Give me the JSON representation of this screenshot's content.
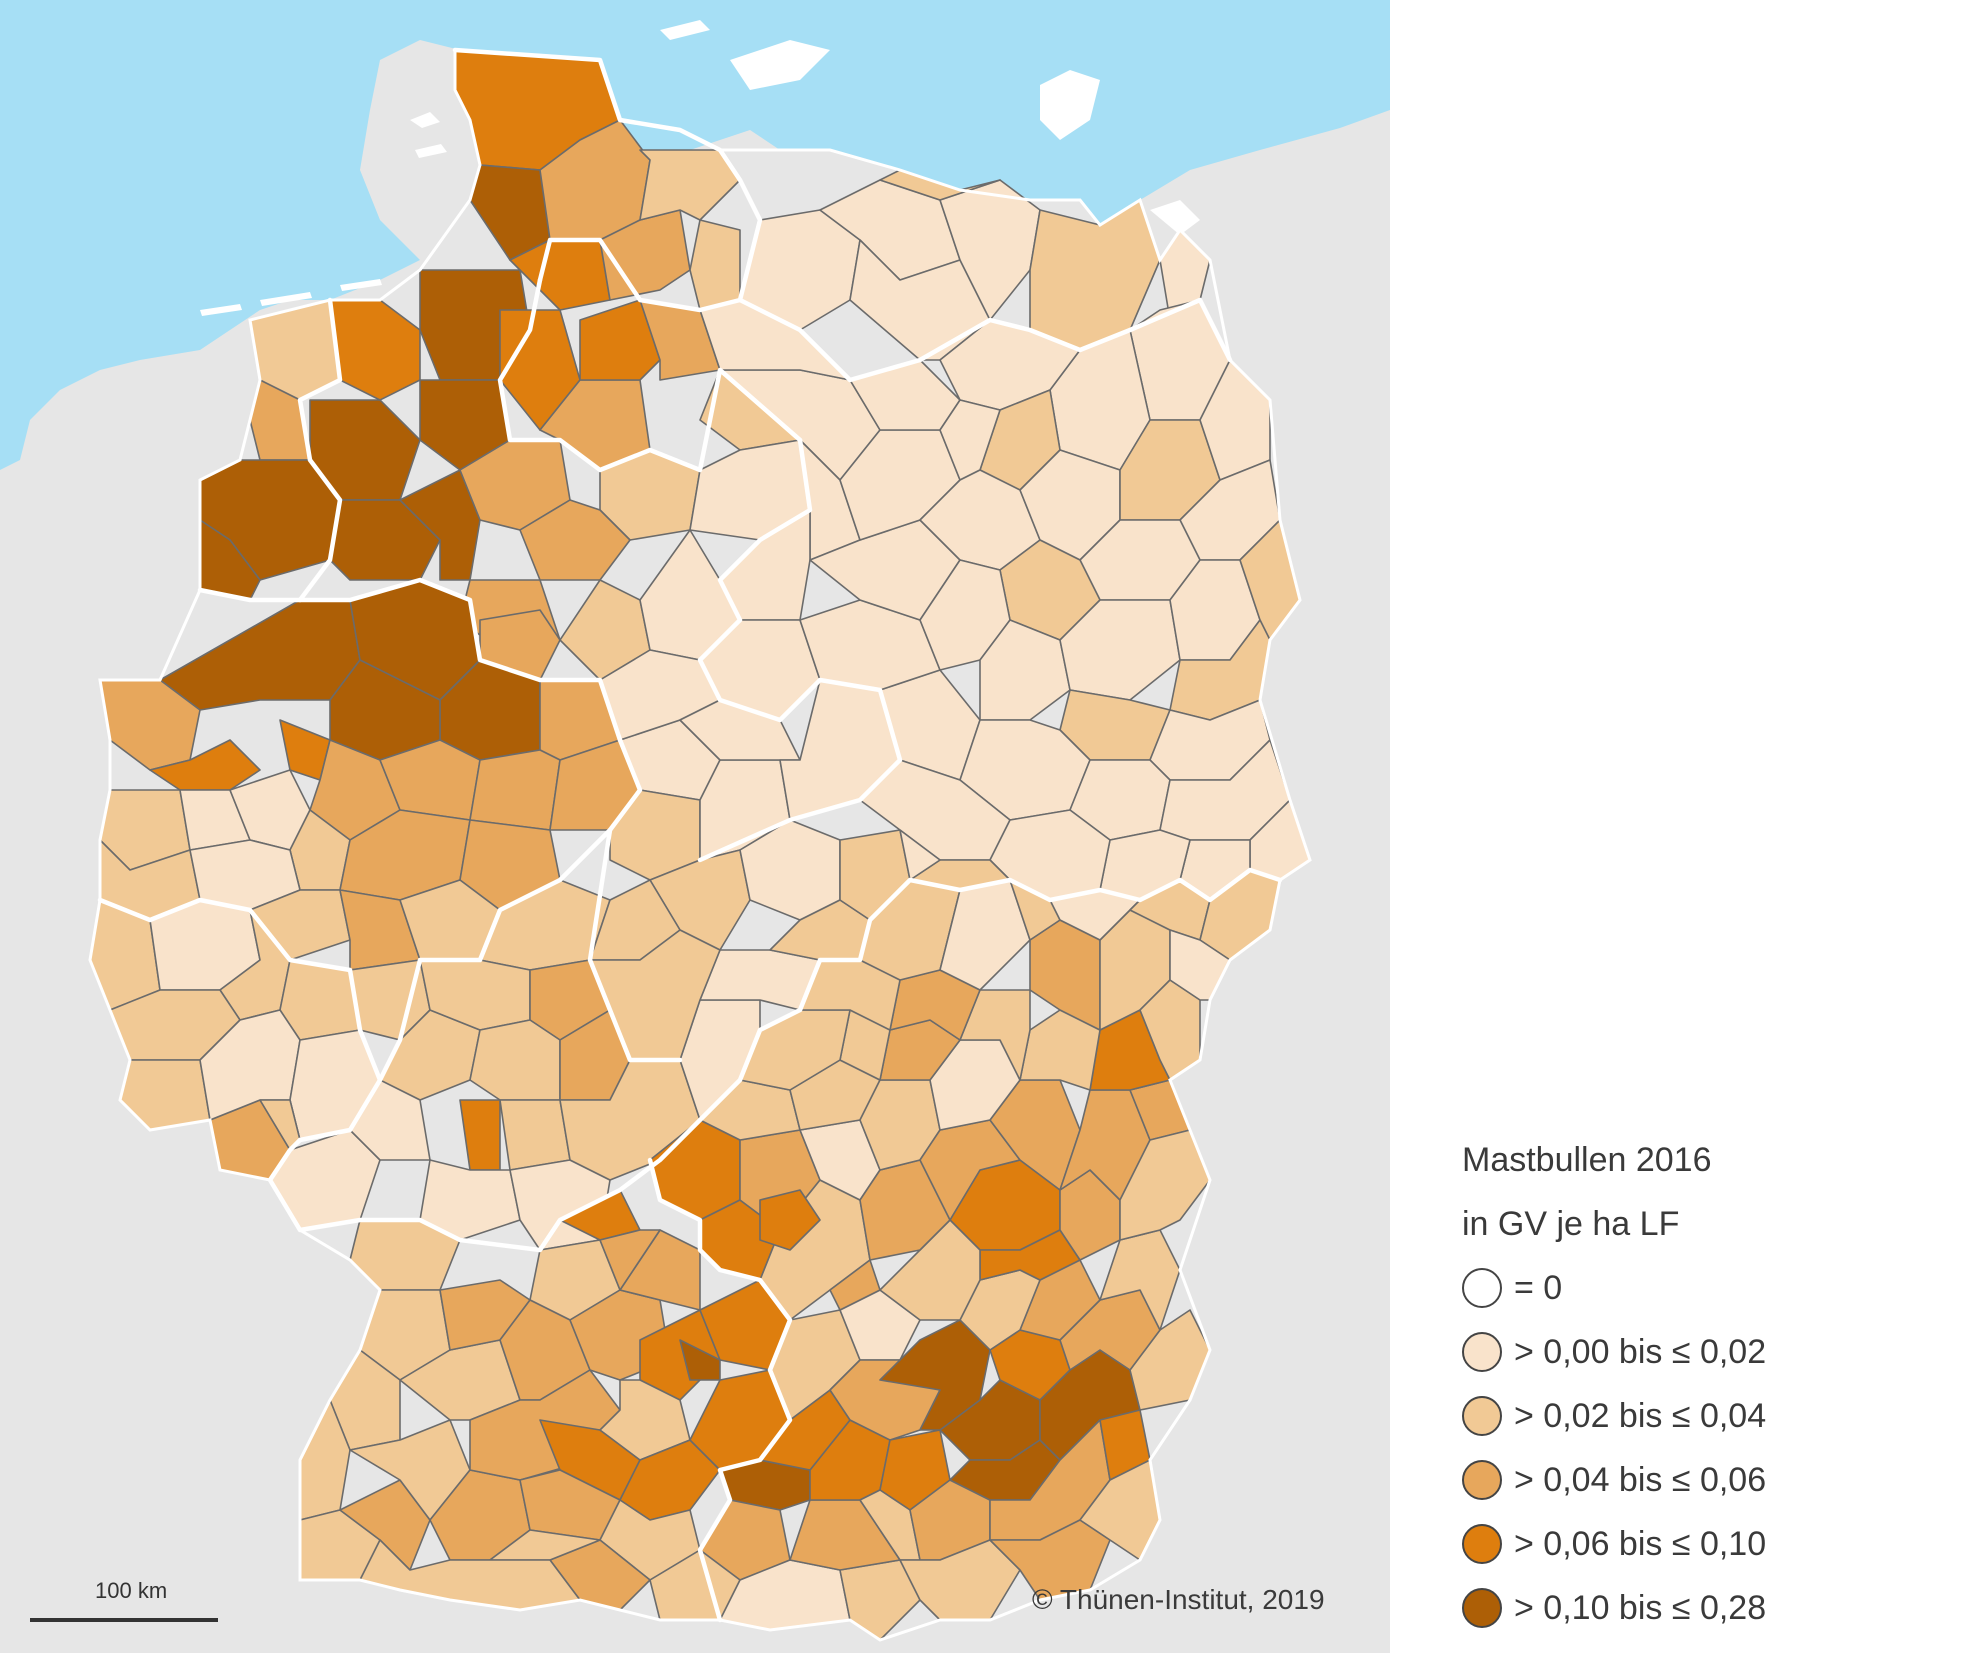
{
  "legend": {
    "title_line1": "Mastbullen 2016",
    "title_line2": "in GV je ha LF",
    "classes": [
      {
        "label": "= 0",
        "color": "#ffffff"
      },
      {
        "label": "> 0,00 bis ≤ 0,02",
        "color": "#f9e3cb"
      },
      {
        "label": "> 0,02 bis ≤ 0,04",
        "color": "#f1c995"
      },
      {
        "label": "> 0,04 bis ≤ 0,06",
        "color": "#e7a75c"
      },
      {
        "label": "> 0,06 bis ≤ 0,10",
        "color": "#de7e0e"
      },
      {
        "label": "> 0,10 bis ≤ 0,28",
        "color": "#ad5f06"
      }
    ]
  },
  "scale": {
    "label": "100 km"
  },
  "credit": "© Thünen-Institut, 2019",
  "colors": {
    "sea": "#a6dff5",
    "neighbor_land": "#e6e6e6",
    "district_border": "#6b6b6b",
    "state_border": "#ffffff"
  }
}
